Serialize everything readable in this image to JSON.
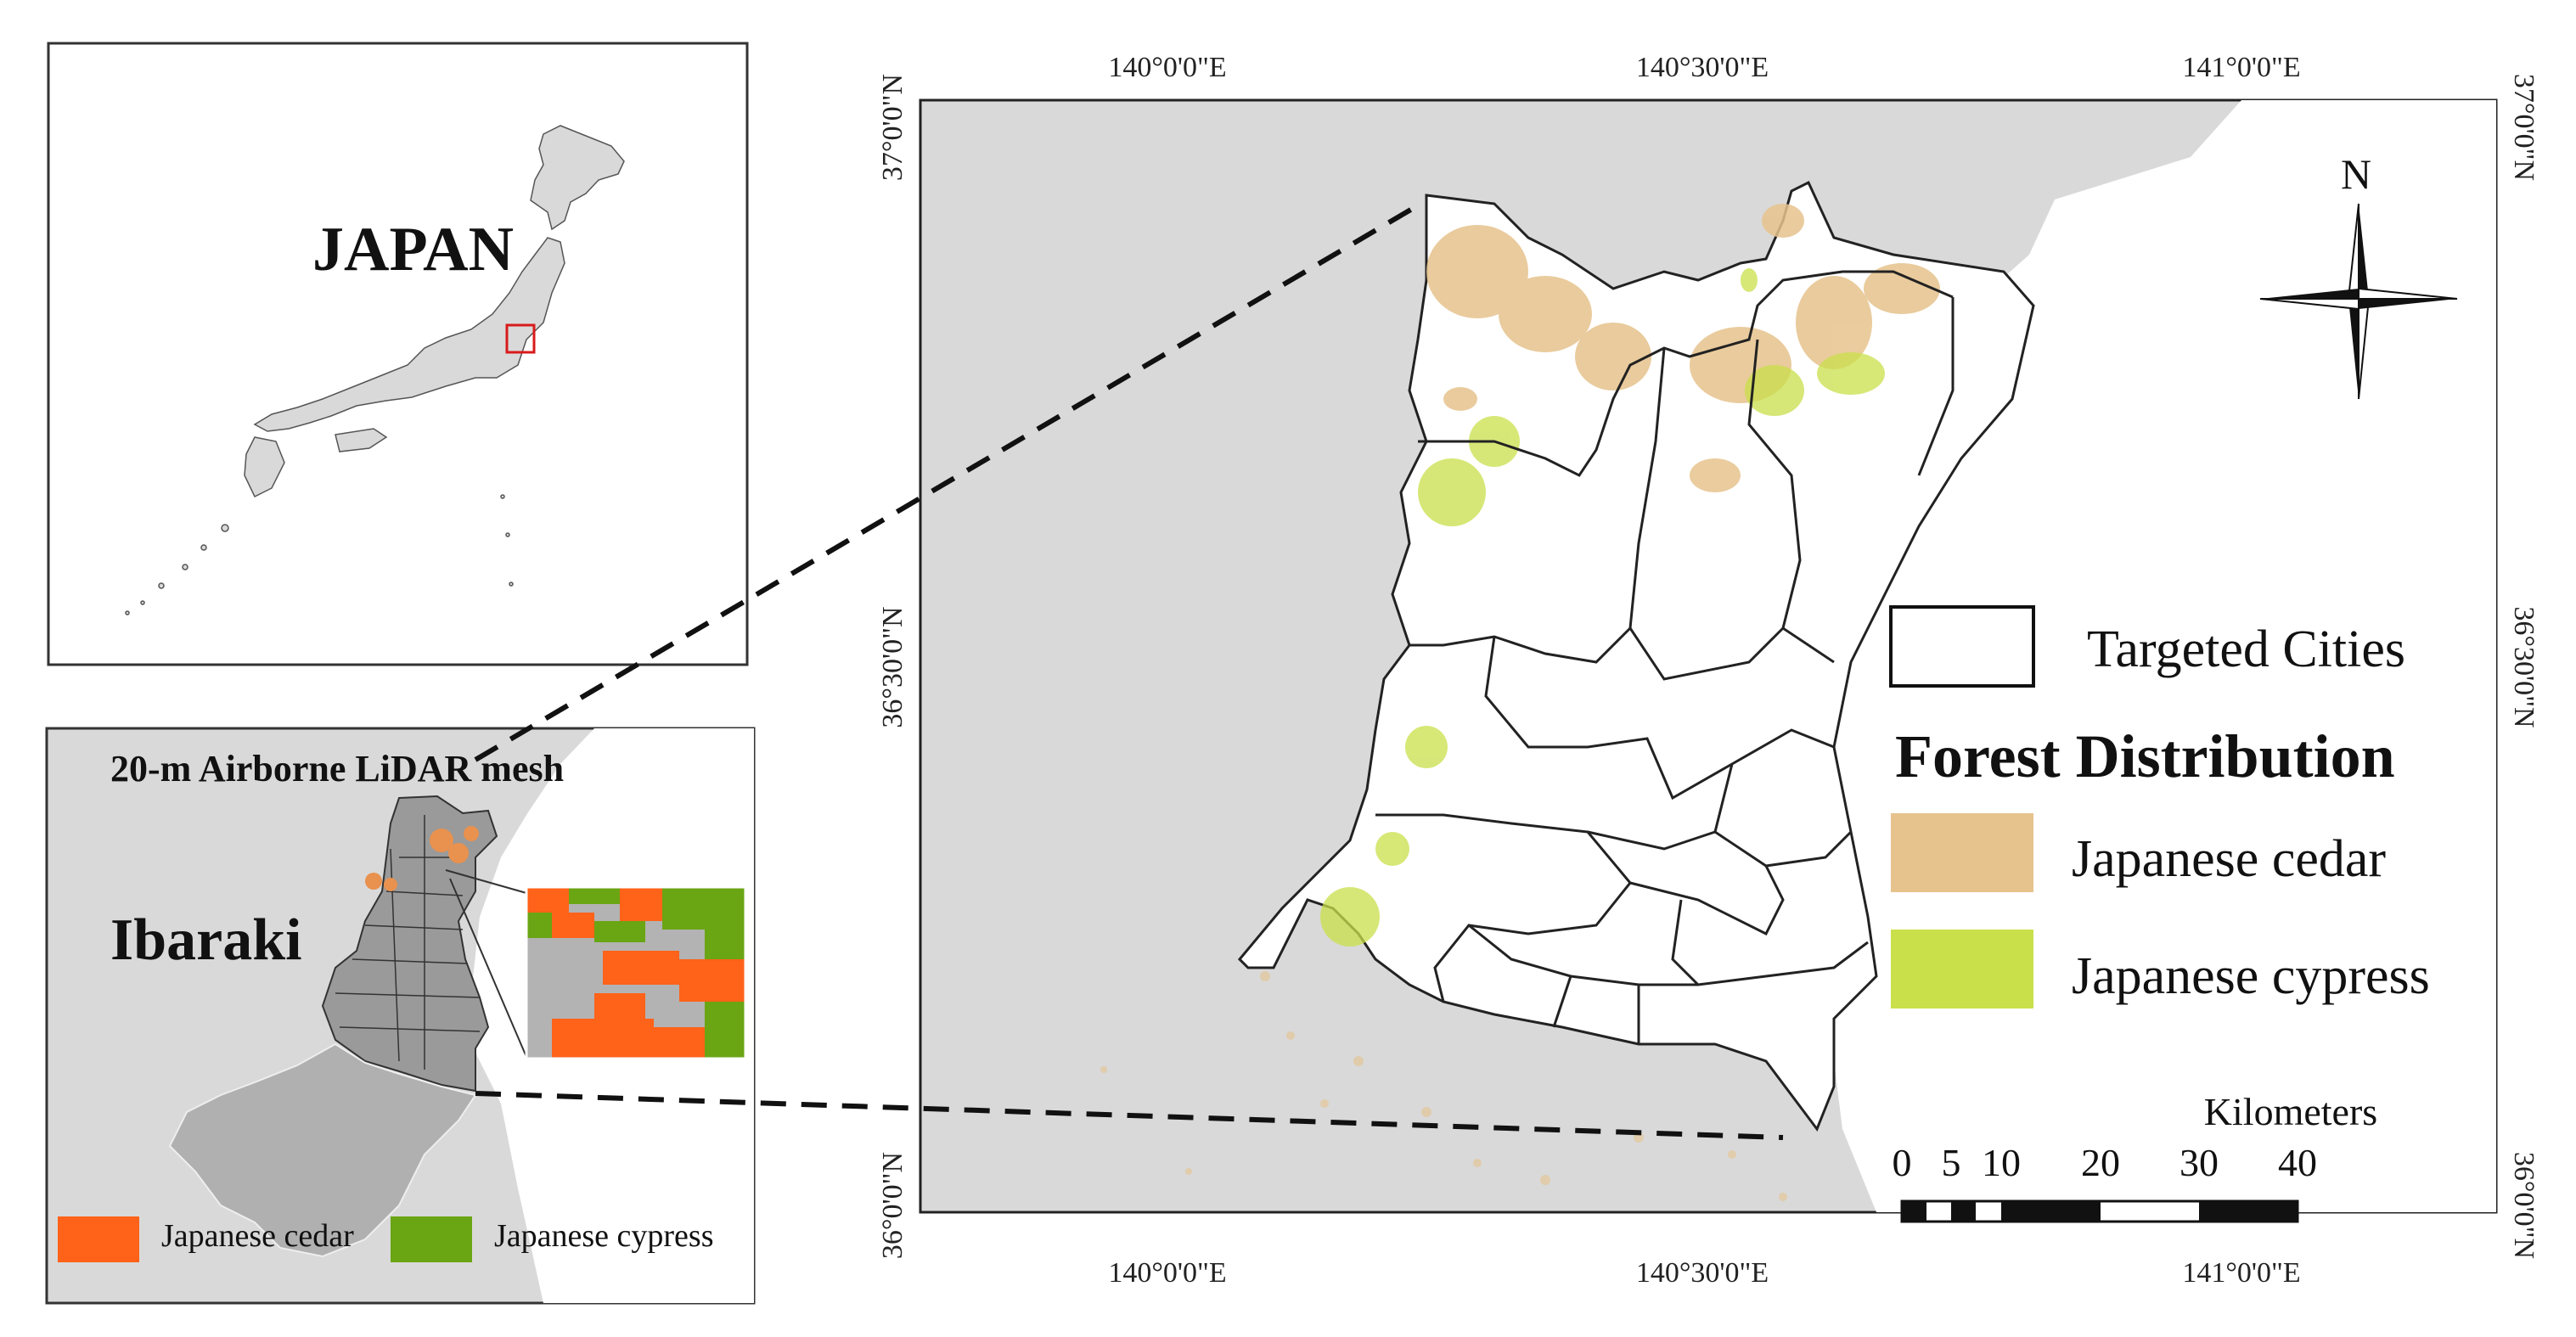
{
  "overview_map": {
    "country_label": "JAPAN"
  },
  "inset_map": {
    "title": "20-m Airborne LiDAR mesh",
    "prefecture_label": "Ibaraki",
    "legend": {
      "cedar_label": "Japanese cedar",
      "cypress_label": "Japanese cypress"
    }
  },
  "main_map": {
    "top_ticks": [
      "140°0'0\"E",
      "140°30'0\"E",
      "141°0'0\"E"
    ],
    "bottom_ticks": [
      "140°0'0\"E",
      "140°30'0\"E",
      "141°0'0\"E"
    ],
    "left_ticks": [
      "37°0'0\"N",
      "36°30'0\"N",
      "36°0'0\"N"
    ],
    "right_ticks": [
      "37°0'0\"N",
      "36°30'0\"N",
      "36°0'0\"N"
    ],
    "north_label": "N",
    "legend": {
      "targeted_cities_label": "Targeted Cities",
      "forest_title": "Forest Distribution",
      "cedar_label": "Japanese cedar",
      "cypress_label": "Japanese cypress"
    },
    "scale_bar": {
      "unit_label": "Kilometers",
      "labels": [
        "0",
        "5",
        "10",
        "20",
        "30",
        "40"
      ]
    }
  },
  "colors": {
    "land_gray": "#d9d9d9",
    "inset_gray": "#b3b3b3",
    "cedar_main": "#e6c38d",
    "cypress_main": "#c9e04a",
    "cedar_inset": "#ff6219",
    "cypress_inset": "#6aa513",
    "locator_box": "#d91a1a"
  }
}
